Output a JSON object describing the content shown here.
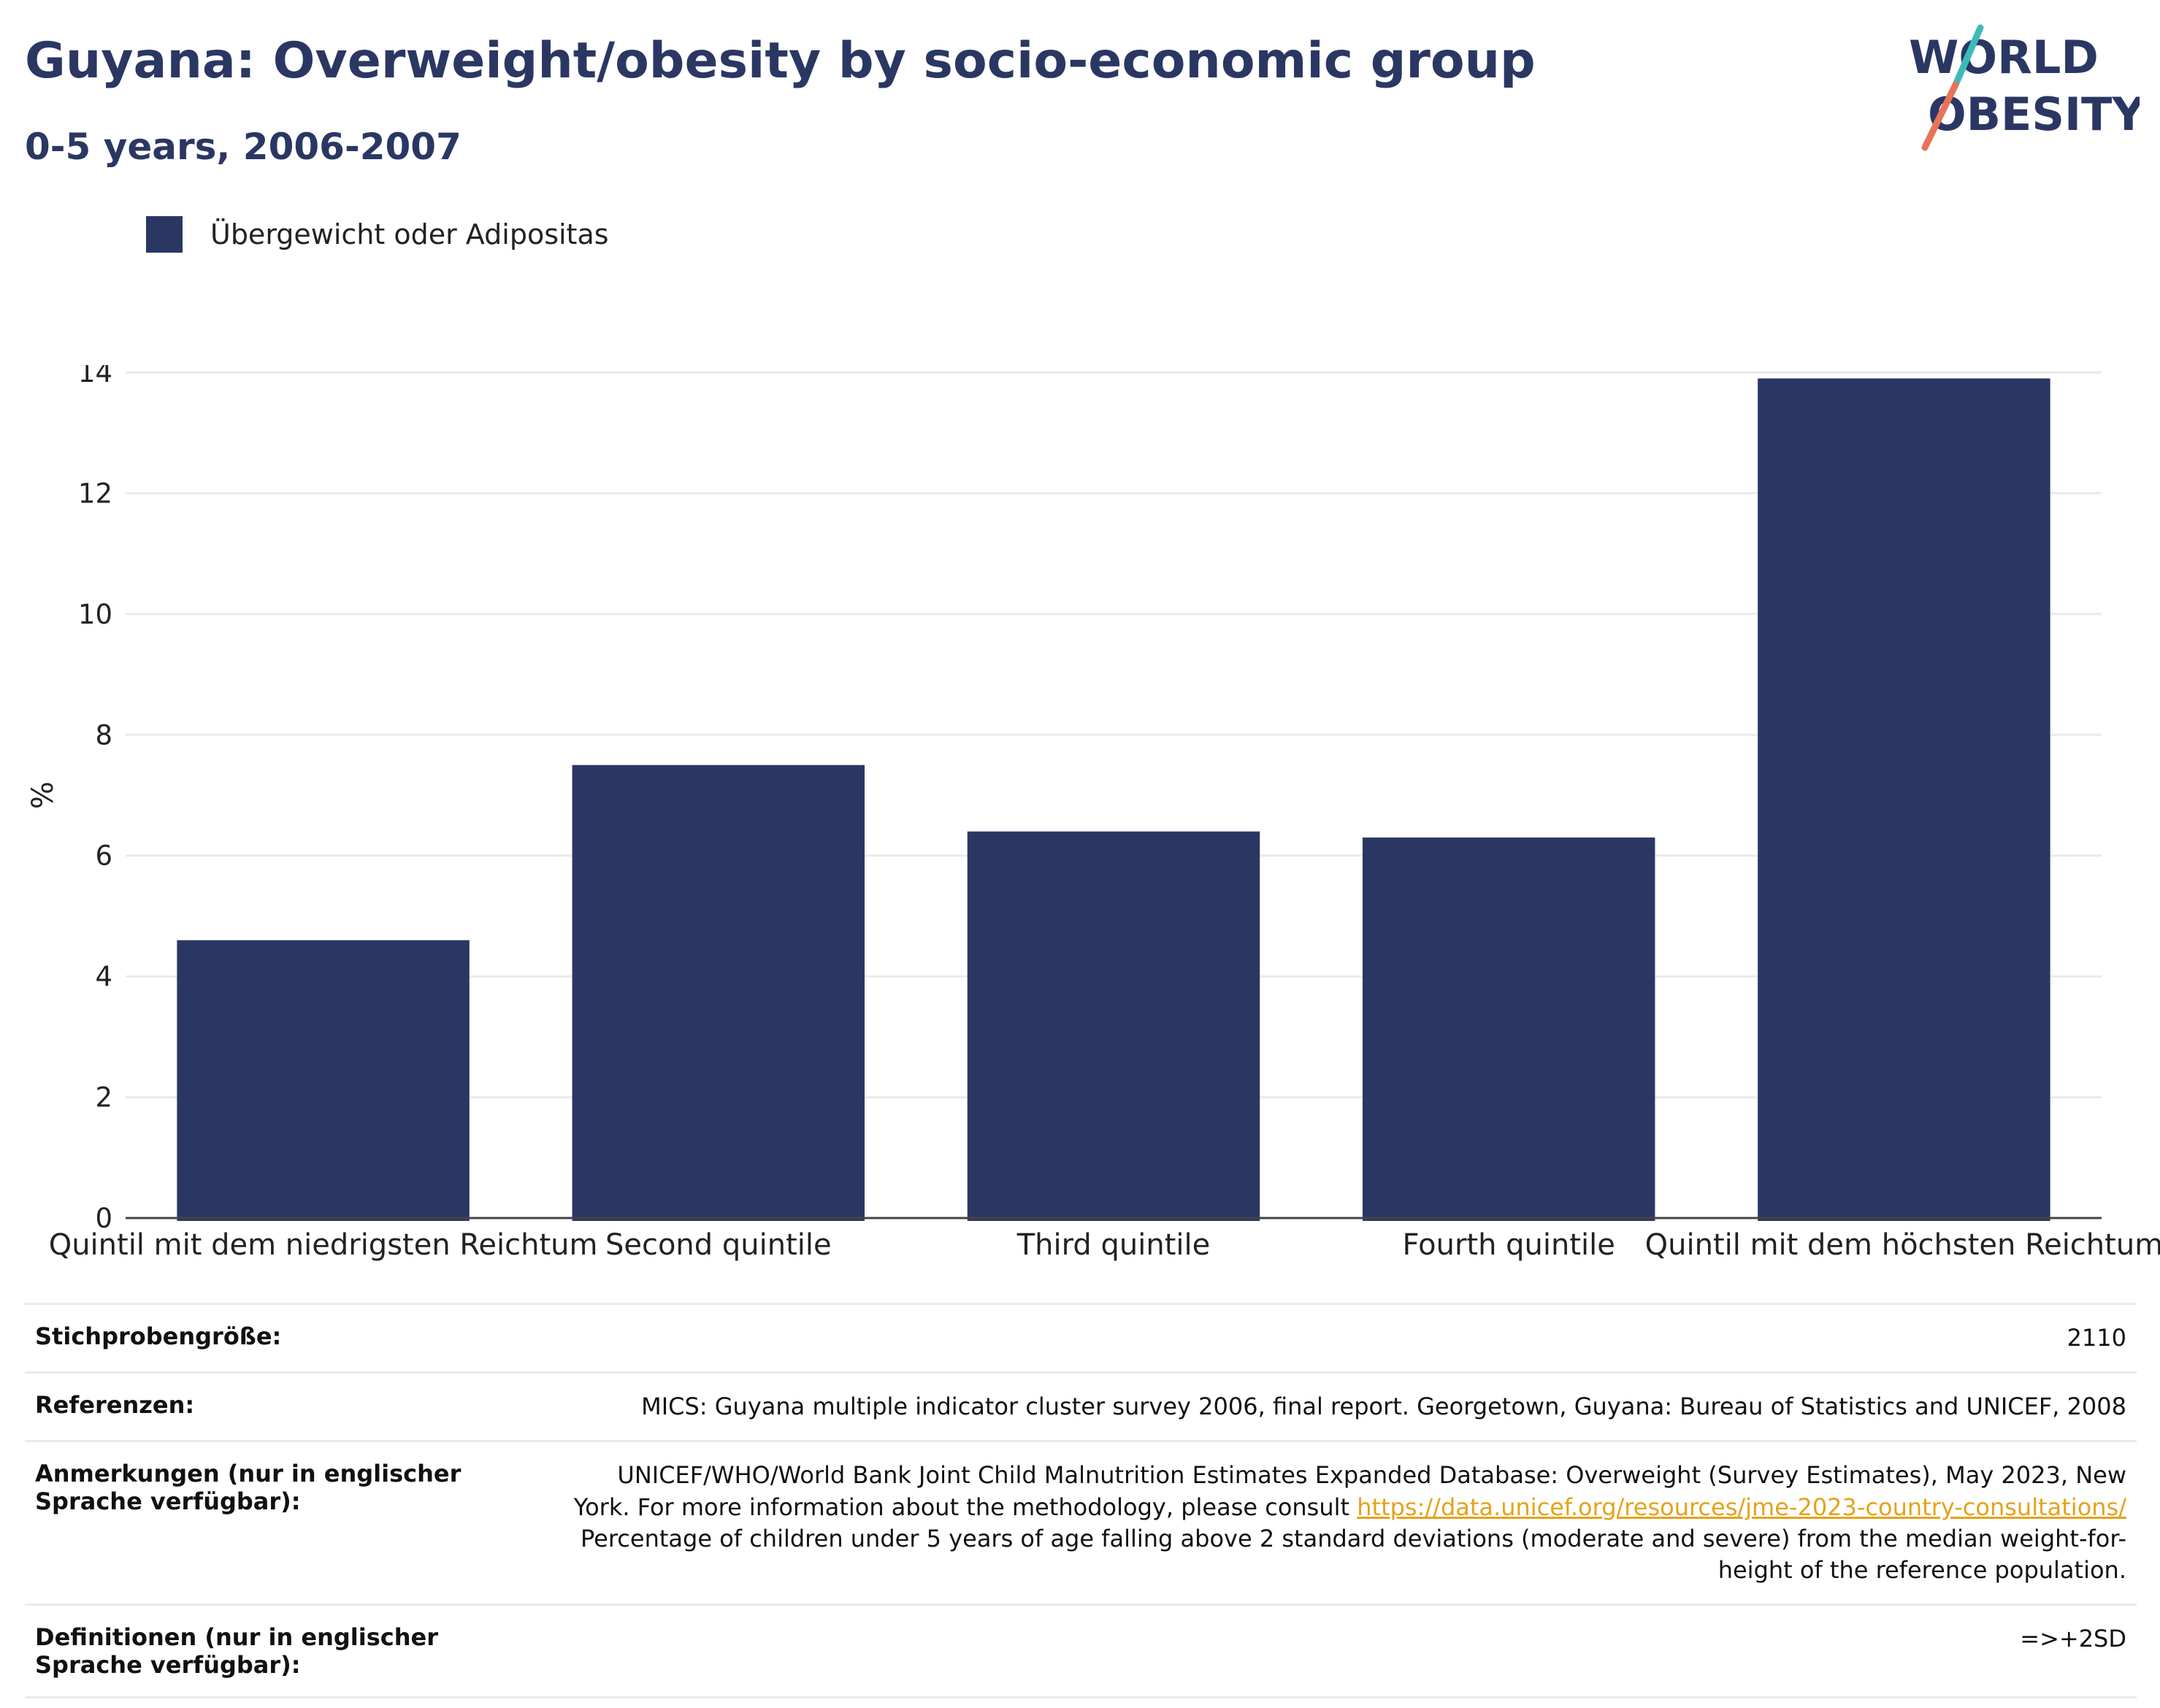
{
  "title": "Guyana: Overweight/obesity by socio-economic group",
  "subtitle": "0-5 years, 2006-2007",
  "logo": {
    "line1": "WORLD",
    "line2": "OBESITY",
    "accent_teal": "#3cbcb9",
    "accent_coral": "#e8735b"
  },
  "colors": {
    "bar": "#2b3763",
    "title": "#2b3763",
    "link": "#e5a21a"
  },
  "chart_data": {
    "type": "bar",
    "categories": [
      "Quintil mit dem niedrigsten Reichtum",
      "Second quintile",
      "Third quintile",
      "Fourth quintile",
      "Quintil mit dem höchsten Reichtum"
    ],
    "series": [
      {
        "name": "Übergewicht oder Adipositas",
        "values": [
          4.6,
          7.5,
          6.4,
          6.3,
          13.9
        ]
      }
    ],
    "ylabel": "%",
    "xlabel": "",
    "ylim": [
      0,
      14
    ],
    "yticks": [
      0,
      2,
      4,
      6,
      8,
      10,
      12,
      14
    ],
    "grid": true,
    "legend_position": "top-left"
  },
  "info": {
    "sample_label": "Stichprobengröße:",
    "sample_value": "2110",
    "ref_label": "Referenzen:",
    "ref_value": "MICS: Guyana multiple indicator cluster survey 2006, final report. Georgetown, Guyana: Bureau of Statistics and UNICEF, 2008",
    "notes_label": "Anmerkungen (nur in englischer Sprache verfügbar):",
    "notes_text1": "UNICEF/WHO/World Bank Joint Child Malnutrition Estimates Expanded Database: Overweight (Survey Estimates), May 2023, New York. For more information about the methodology, please consult ",
    "notes_link": "https://data.unicef.org/resources/jme-2023-country-consultations/",
    "notes_text2": "Percentage of children under 5 years of age falling above 2 standard deviations (moderate and severe) from the median weight-for-height of the reference population.",
    "def_label": "Definitionen (nur in englischer Sprache verfügbar):",
    "def_value": "=>+2SD"
  }
}
